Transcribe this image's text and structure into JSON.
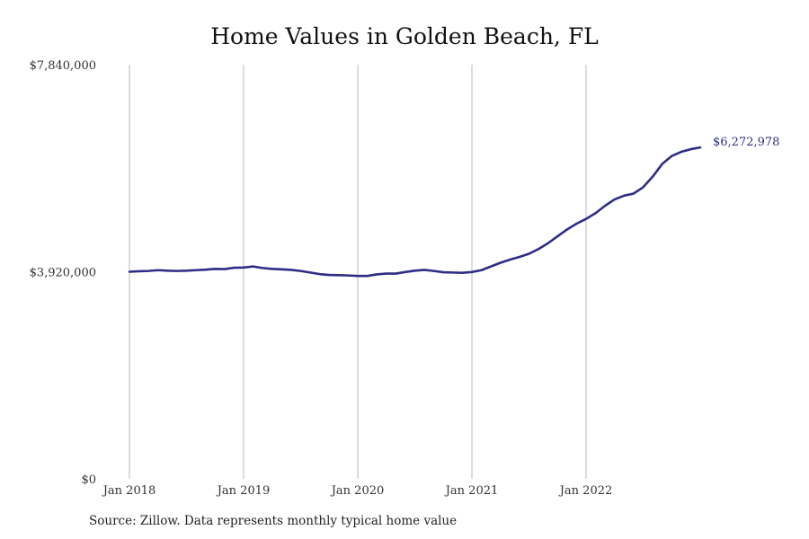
{
  "chart_data": {
    "type": "line",
    "title": "Home Values in Golden Beach, FL",
    "xlabel": "",
    "ylabel": "",
    "ylim": [
      0,
      7840000
    ],
    "y_ticks": [
      {
        "value": 0,
        "label": "$0"
      },
      {
        "value": 3920000,
        "label": "$3,920,000"
      },
      {
        "value": 7840000,
        "label": "$7,840,000"
      }
    ],
    "x_ticks": [
      {
        "index": 0,
        "label": "Jan 2018"
      },
      {
        "index": 12,
        "label": "Jan 2019"
      },
      {
        "index": 24,
        "label": "Jan 2020"
      },
      {
        "index": 36,
        "label": "Jan 2021"
      },
      {
        "index": 48,
        "label": "Jan 2022"
      }
    ],
    "x_start": "2018-01",
    "x_end": "2022-12",
    "grid": "vertical",
    "color": "#2e2d86",
    "series": [
      {
        "values": [
          3920000,
          3930000,
          3935000,
          3950000,
          3940000,
          3935000,
          3940000,
          3950000,
          3960000,
          3975000,
          3970000,
          3995000,
          4000000,
          4020000,
          3990000,
          3975000,
          3965000,
          3955000,
          3935000,
          3905000,
          3875000,
          3860000,
          3855000,
          3850000,
          3840000,
          3840000,
          3870000,
          3885000,
          3885000,
          3915000,
          3940000,
          3955000,
          3935000,
          3910000,
          3905000,
          3900000,
          3915000,
          3950000,
          4020000,
          4090000,
          4150000,
          4200000,
          4260000,
          4350000,
          4460000,
          4590000,
          4720000,
          4830000,
          4920000,
          5030000,
          5170000,
          5290000,
          5360000,
          5400000,
          5520000,
          5720000,
          5960000,
          6110000,
          6190000,
          6240000,
          6272978
        ],
        "end_label": "$6,272,978"
      }
    ],
    "source": "Source: Zillow. Data represents monthly typical home value"
  }
}
